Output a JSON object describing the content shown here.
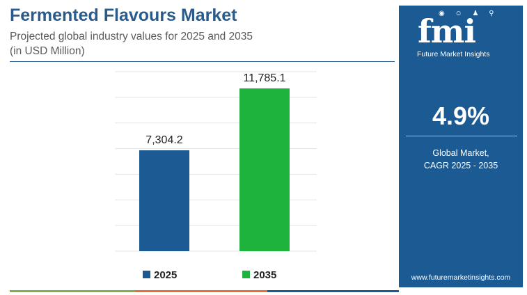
{
  "header": {
    "title": "Fermented Flavours Market",
    "subtitle_line1": "Projected global industry values for 2025 and 2035",
    "subtitle_line2": "(in USD Million)"
  },
  "chart_data": {
    "type": "bar",
    "categories": [
      "2025",
      "2035"
    ],
    "values": [
      7304.2,
      11785.1
    ],
    "value_labels": [
      "7,304.2",
      "11,785.1"
    ],
    "colors": [
      "#1b5a92",
      "#1db33c"
    ],
    "legend": [
      "2025",
      "2035"
    ],
    "legend_position": "bottom",
    "ylim": [
      0,
      13000
    ],
    "grid": true,
    "title": "",
    "xlabel": "",
    "ylabel": ""
  },
  "side_panel": {
    "logo_text": "fmi",
    "logo_subtitle": "Future Market Insights",
    "logo_icons": "◉ ☺ ♟ ⚲",
    "cagr_value": "4.9%",
    "cagr_label_line1": "Global Market,",
    "cagr_label_line2": "CAGR 2025 - 2035",
    "website": "www.futuremarketinsights.com"
  },
  "colors": {
    "brand_blue": "#1b5a92",
    "green": "#1db33c",
    "bottom_bar": [
      "#7cb342",
      "#e8702a",
      "#1b5a92"
    ]
  }
}
